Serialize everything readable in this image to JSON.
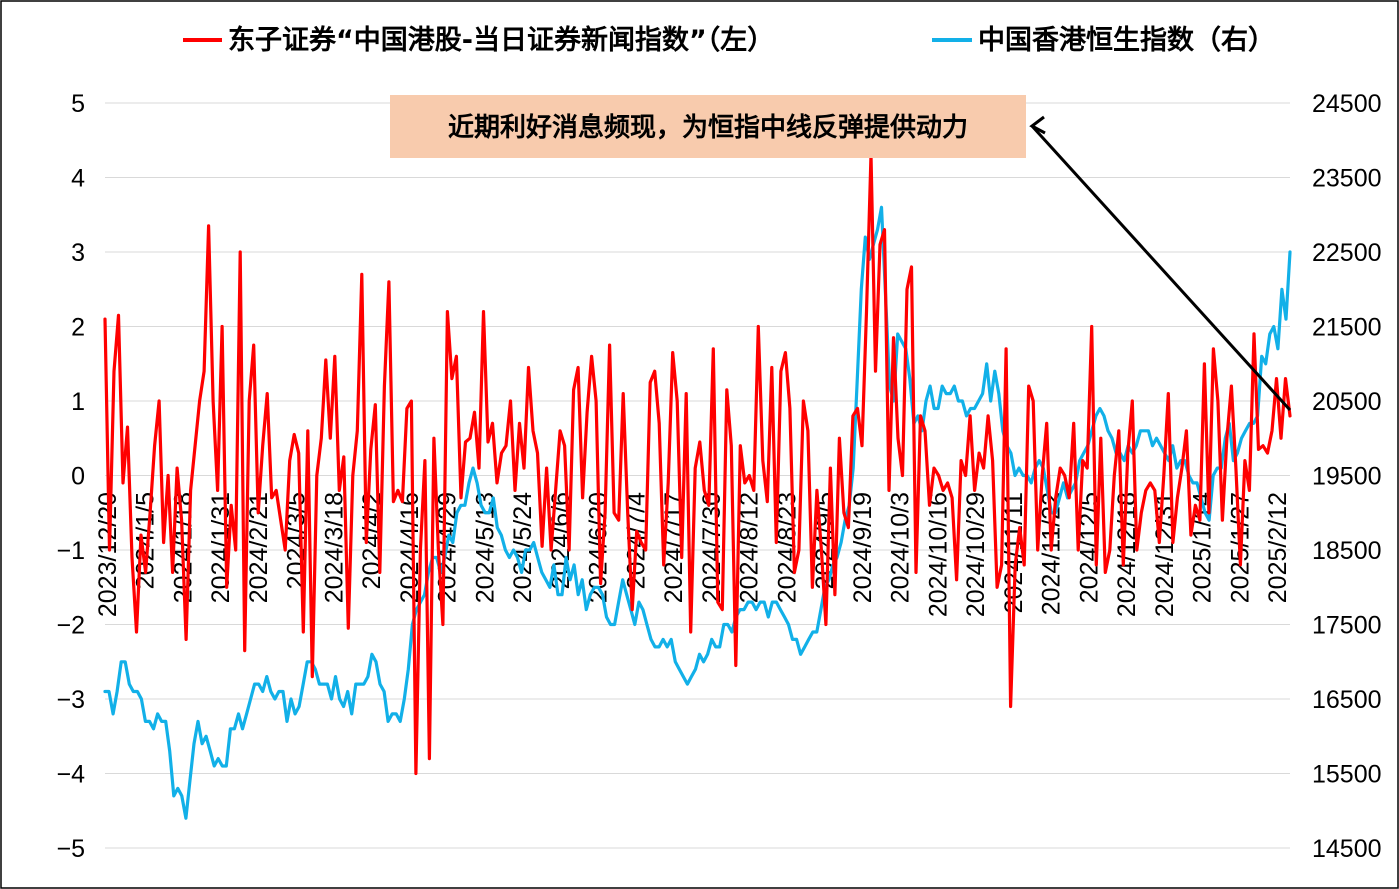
{
  "chart_data": {
    "type": "line",
    "title": "",
    "legend_placement": "top",
    "grid": true,
    "y_left": {
      "min": -5,
      "max": 5,
      "step": 1,
      "ticks": [
        "−5",
        "−4",
        "−3",
        "−2",
        "−1",
        "0",
        "1",
        "2",
        "3",
        "4",
        "5"
      ]
    },
    "y_right": {
      "min": 14500,
      "max": 24500,
      "step": 1000,
      "ticks": [
        "14500",
        "15500",
        "16500",
        "17500",
        "18500",
        "19500",
        "20500",
        "21500",
        "22500",
        "23500",
        "24500"
      ]
    },
    "x_ticks": [
      "2023/12/20",
      "2024/1/5",
      "2024/1/18",
      "2024/1/31",
      "2024/2/21",
      "2024/3/5",
      "2024/3/18",
      "2024/4/2",
      "2024/4/16",
      "2024/4/29",
      "2024/5/13",
      "2024/5/24",
      "2024/6/6",
      "2024/6/20",
      "2024/7/4",
      "2024/7/17",
      "2024/7/30",
      "2024/8/12",
      "2024/8/23",
      "2024/9/5",
      "2024/9/19",
      "2024/10/3",
      "2024/10/16",
      "2024/10/29",
      "2024/11/11",
      "2024/11/22",
      "2024/12/5",
      "2024/12/18",
      "2024/12/31",
      "2025/1/14",
      "2025/1/27",
      "2025/2/12"
    ],
    "series": [
      {
        "name": "东子证券“中国港股-当日证券新闻指数”（左）",
        "axis": "left",
        "color": "#ff0000",
        "values": [
          2.1,
          -1.0,
          1.4,
          2.15,
          -0.1,
          0.65,
          -1.1,
          -2.1,
          -0.8,
          -1.3,
          -0.5,
          0.4,
          1.0,
          -0.9,
          0.0,
          -1.3,
          0.1,
          -0.6,
          -2.2,
          -0.2,
          0.4,
          1.0,
          1.4,
          3.35,
          1.0,
          -0.2,
          2.0,
          -1.5,
          -0.4,
          -1.0,
          3.0,
          -2.35,
          1.0,
          1.75,
          -0.5,
          0.4,
          1.1,
          -0.3,
          -0.2,
          -0.6,
          -1.0,
          0.2,
          0.55,
          0.3,
          -2.1,
          0.6,
          -2.7,
          0.0,
          0.5,
          1.55,
          0.5,
          1.6,
          -0.2,
          0.25,
          -2.05,
          0.0,
          0.6,
          2.7,
          -0.9,
          0.35,
          0.95,
          -1.3,
          1.2,
          2.6,
          -0.35,
          -0.2,
          -0.35,
          0.9,
          1.0,
          -4.0,
          -1.0,
          0.2,
          -3.8,
          0.5,
          -1.0,
          -2.0,
          2.2,
          1.3,
          1.6,
          -0.3,
          0.45,
          0.5,
          0.85,
          0.1,
          2.2,
          0.45,
          0.7,
          -0.1,
          0.3,
          0.4,
          1.0,
          -0.2,
          0.7,
          0.1,
          1.45,
          0.6,
          0.3,
          -0.95,
          0.1,
          -1.0,
          -0.2,
          0.6,
          0.4,
          -1.0,
          1.15,
          1.45,
          -0.3,
          0.85,
          1.6,
          1.0,
          -1.45,
          -0.5,
          1.75,
          -0.5,
          -0.6,
          1.1,
          -0.5,
          -1.8,
          -0.75,
          -0.9,
          -1.0,
          1.25,
          1.4,
          0.7,
          -1.2,
          -0.1,
          1.65,
          1.0,
          -1.1,
          1.1,
          -2.1,
          0.1,
          0.45,
          -0.2,
          -0.4,
          1.7,
          -1.7,
          -1.8,
          1.15,
          0.4,
          -2.55,
          0.4,
          -0.1,
          0.0,
          -0.2,
          2.0,
          0.2,
          -0.35,
          1.45,
          -0.9,
          1.4,
          1.65,
          0.9,
          -1.3,
          -1.0,
          1.0,
          0.6,
          -1.5,
          -0.2,
          -1.0,
          -2.0,
          0.1,
          -1.6,
          0.5,
          -0.5,
          -0.7,
          0.8,
          0.9,
          0.4,
          2.2,
          4.3,
          1.4,
          3.1,
          3.3,
          -0.2,
          1.85,
          0.5,
          0.0,
          2.5,
          2.8,
          -1.3,
          0.8,
          0.6,
          -0.4,
          0.1,
          0.0,
          -0.2,
          -0.1,
          -0.3,
          -1.4,
          0.2,
          0.0,
          0.8,
          -0.2,
          0.3,
          0.1,
          0.8,
          0.2,
          -1.5,
          -1.2,
          1.7,
          -3.1,
          -1.2,
          -0.7,
          -1.2,
          1.2,
          1.0,
          -1.0,
          0.0,
          0.7,
          -1.0,
          -0.3,
          0.1,
          0.0,
          -0.3,
          0.7,
          -1.0,
          0.2,
          0.1,
          2.0,
          -1.2,
          0.5,
          -1.3,
          -1.0,
          0.0,
          0.6,
          -1.2,
          0.3,
          1.0,
          -1.0,
          -0.5,
          -0.2,
          -0.1,
          -0.2,
          -0.9,
          0.0,
          1.1,
          -0.9,
          -0.3,
          0.1,
          0.6,
          -0.8,
          -0.4,
          -0.6,
          1.5,
          -0.5,
          1.7,
          1.0,
          -0.6,
          0.5,
          1.2,
          0.1,
          -1.2,
          0.2,
          -0.2,
          1.9,
          0.35,
          0.4,
          0.3,
          0.6,
          1.3,
          0.5,
          1.3,
          0.8
        ]
      },
      {
        "name": "中国香港恒生指数（右）",
        "axis": "right",
        "color": "#12b0e8",
        "values": [
          16600,
          16600,
          16300,
          16600,
          17000,
          17000,
          16700,
          16600,
          16600,
          16500,
          16200,
          16200,
          16100,
          16300,
          16200,
          16200,
          15800,
          15200,
          15300,
          15200,
          14900,
          15400,
          15900,
          16200,
          15900,
          16000,
          15800,
          15600,
          15700,
          15600,
          15600,
          16100,
          16100,
          16300,
          16100,
          16300,
          16500,
          16700,
          16700,
          16600,
          16800,
          16600,
          16500,
          16600,
          16600,
          16200,
          16500,
          16300,
          16400,
          16700,
          17000,
          17000,
          16900,
          16700,
          16700,
          16700,
          16500,
          16800,
          16500,
          16400,
          16600,
          16300,
          16700,
          16700,
          16700,
          16800,
          17100,
          17000,
          16700,
          16600,
          16200,
          16300,
          16300,
          16200,
          16500,
          16900,
          17500,
          17700,
          17800,
          17900,
          18200,
          18400,
          18400,
          18200,
          18400,
          18700,
          18600,
          19000,
          19100,
          19100,
          19400,
          19600,
          19400,
          19100,
          19000,
          19000,
          19200,
          18800,
          18700,
          18500,
          18400,
          18500,
          18400,
          18200,
          18500,
          18500,
          18600,
          18400,
          18200,
          18100,
          18000,
          18300,
          17900,
          17900,
          18400,
          18100,
          18300,
          17900,
          18100,
          17700,
          17900,
          18000,
          18000,
          17900,
          17600,
          17500,
          17500,
          17800,
          18100,
          17900,
          17700,
          17500,
          17800,
          17700,
          17500,
          17300,
          17200,
          17200,
          17300,
          17200,
          17300,
          17000,
          16900,
          16800,
          16700,
          16800,
          16900,
          17100,
          17000,
          17100,
          17300,
          17200,
          17200,
          17500,
          17500,
          17400,
          17600,
          17700,
          17700,
          17800,
          17800,
          17700,
          17800,
          17800,
          17600,
          17800,
          17800,
          17700,
          17600,
          17500,
          17300,
          17300,
          17100,
          17200,
          17300,
          17400,
          17400,
          17700,
          18000,
          18100,
          18300,
          18400,
          18600,
          18900,
          19100,
          19600,
          20800,
          22000,
          22700,
          22400,
          22600,
          22800,
          23100,
          21900,
          20700,
          20500,
          21400,
          21300,
          21200,
          20800,
          20200,
          20300,
          20100,
          20500,
          20700,
          20400,
          20400,
          20700,
          20600,
          20600,
          20700,
          20500,
          20500,
          20300,
          20400,
          20400,
          20500,
          20600,
          21000,
          20500,
          20900,
          20600,
          20100,
          19900,
          19800,
          19500,
          19600,
          19500,
          19500,
          19400,
          19600,
          19700,
          19600,
          19300,
          19000,
          19000,
          19200,
          19400,
          19200,
          19300,
          19400,
          19700,
          19800,
          19900,
          20100,
          20300,
          20400,
          20300,
          20100,
          20000,
          19800,
          19800,
          19700,
          19900,
          19800,
          19900,
          20100,
          20100,
          20100,
          19900,
          20000,
          19900,
          19800,
          19700,
          19900,
          19600,
          19700,
          19700,
          19500,
          19400,
          19400,
          19200,
          19000,
          18900,
          19500,
          19600,
          19600,
          20000,
          20200,
          19700,
          19800,
          20000,
          20100,
          20200,
          20200,
          20300,
          21100,
          21000,
          21400,
          21500,
          21200,
          22000,
          21600,
          22500
        ]
      }
    ],
    "annotation": {
      "text": "近期利好消息频现，为恒指中线反弹提供动力"
    }
  }
}
